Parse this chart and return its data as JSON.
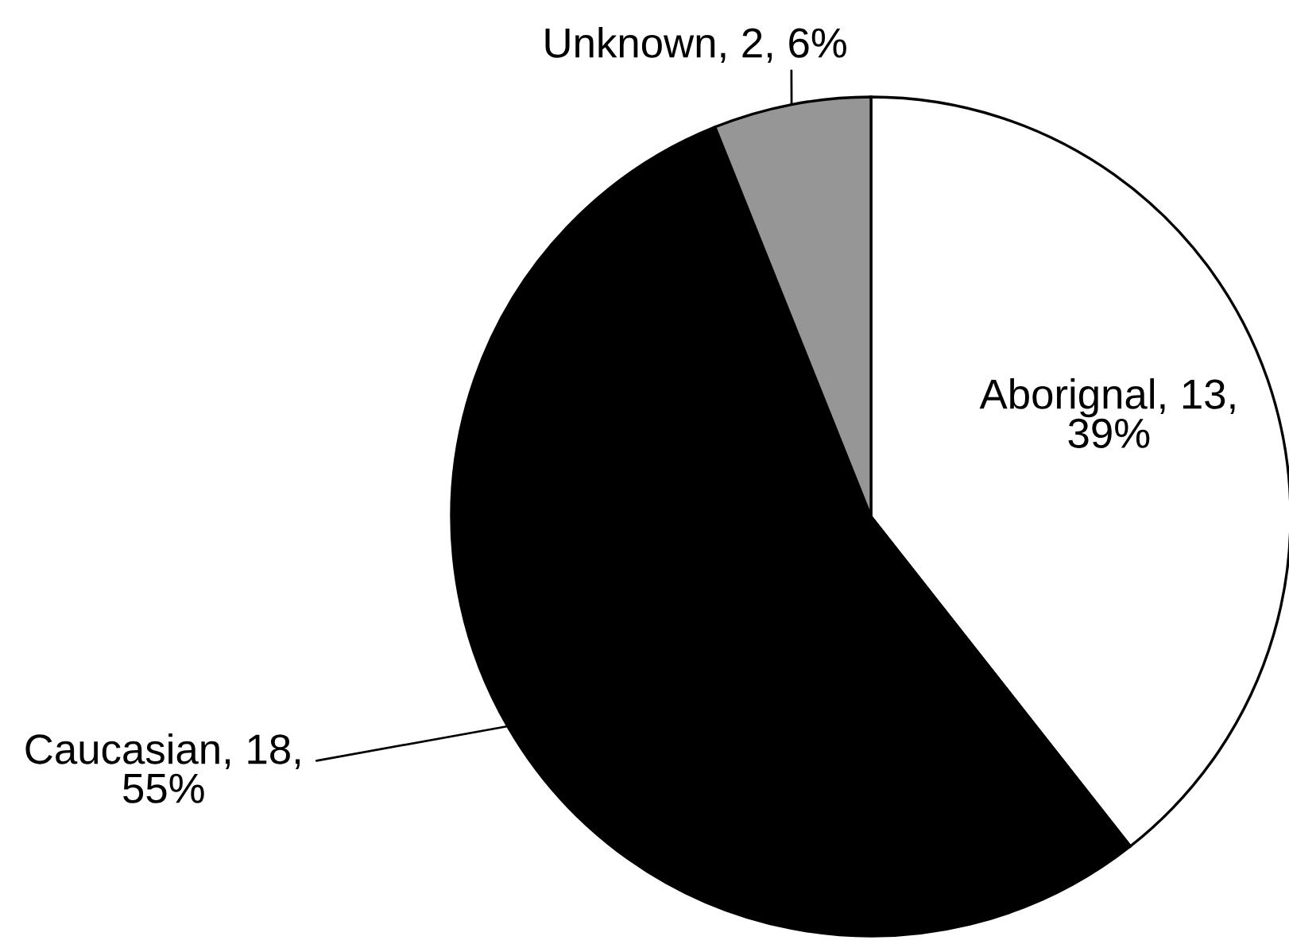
{
  "chart_data": {
    "type": "pie",
    "categories": [
      "Aborignal",
      "Caucasian",
      "Unknown"
    ],
    "values": [
      13,
      18,
      2
    ],
    "colors": [
      "#ffffff",
      "#000000",
      "#969696"
    ],
    "value_labels": [
      "13, 39%",
      "18, 55%",
      "2, 6%"
    ]
  }
}
